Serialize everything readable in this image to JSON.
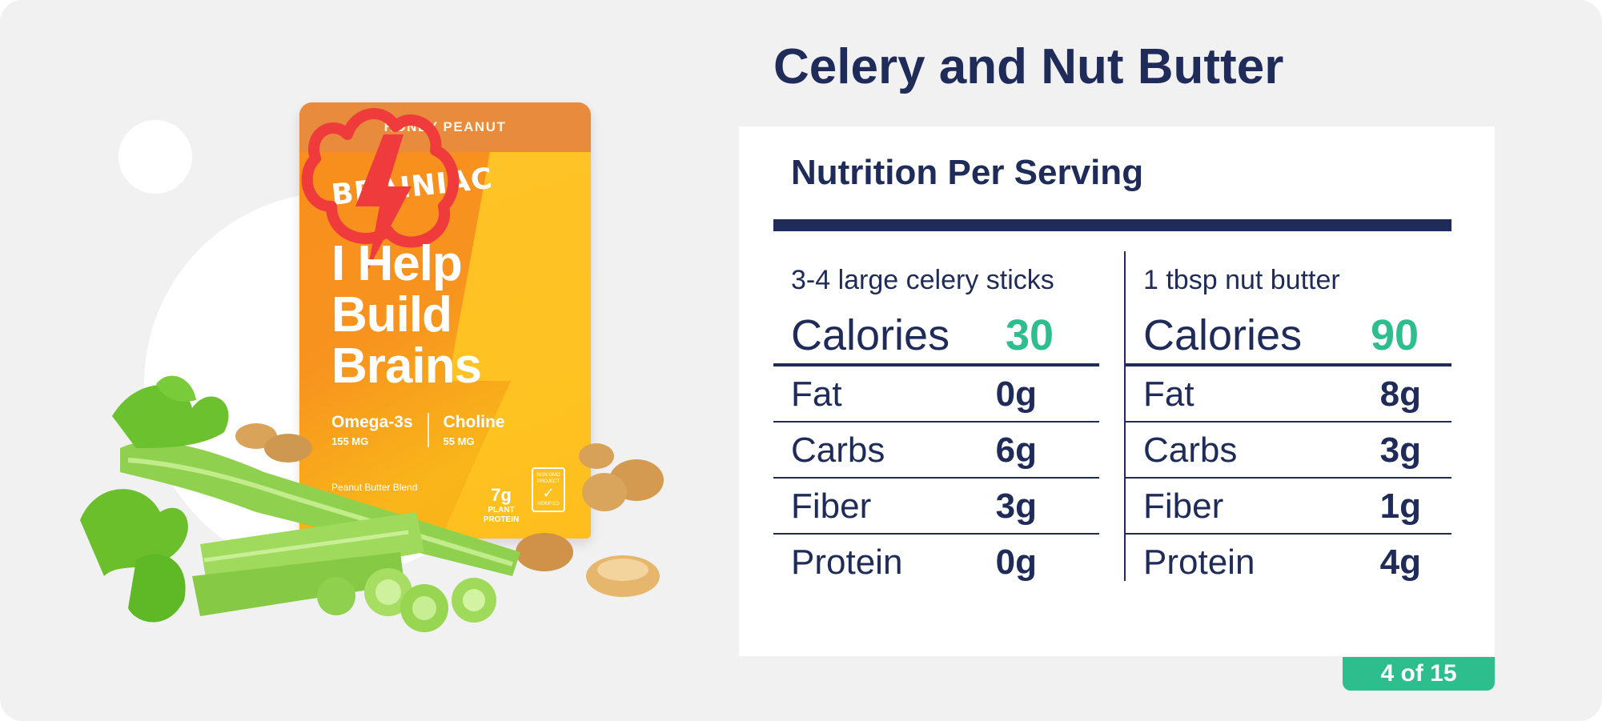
{
  "title": "Celery and Nut Butter",
  "product": {
    "flavor": "HONEY PEANUT",
    "brand": "BRAINIAC",
    "headline": [
      "I Help",
      "Build",
      "Brains"
    ],
    "nutrients": [
      {
        "name": "Omega-3s",
        "amount": "155 MG"
      },
      {
        "name": "Choline",
        "amount": "55 MG"
      }
    ],
    "blend": "Peanut Butter Blend",
    "protein_amount": "7g",
    "protein_label": "PLANT PROTEIN",
    "seal_text": "NON GMO PROJECT",
    "seal_verified": "VERIFIED"
  },
  "nutrition": {
    "heading": "Nutrition Per Serving",
    "items": [
      {
        "serving": "3-4 large celery sticks",
        "calories_label": "Calories",
        "calories": "30",
        "rows": [
          {
            "label": "Fat",
            "value": "0g"
          },
          {
            "label": "Carbs",
            "value": "6g"
          },
          {
            "label": "Fiber",
            "value": "3g"
          },
          {
            "label": "Protein",
            "value": "0g"
          }
        ]
      },
      {
        "serving": "1 tbsp nut butter",
        "calories_label": "Calories",
        "calories": "90",
        "rows": [
          {
            "label": "Fat",
            "value": "8g"
          },
          {
            "label": "Carbs",
            "value": "3g"
          },
          {
            "label": "Fiber",
            "value": "1g"
          },
          {
            "label": "Protein",
            "value": "4g"
          }
        ]
      }
    ]
  },
  "pagination": "4 of 15",
  "colors": {
    "navy": "#1f2b58",
    "accent_green": "#2ebd8c",
    "background": "#f1f1f2"
  }
}
